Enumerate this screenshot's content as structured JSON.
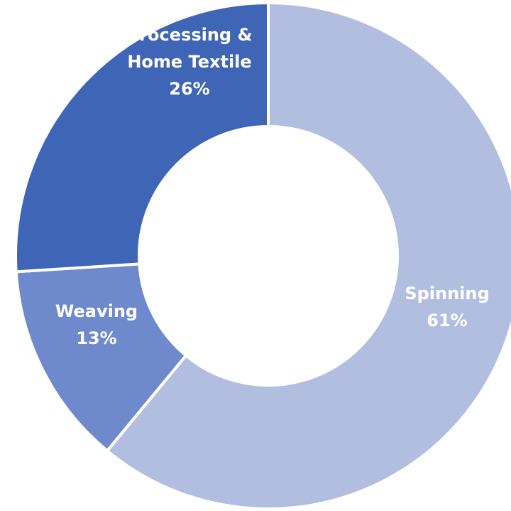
{
  "chart_data": {
    "type": "pie",
    "donut": true,
    "start_angle_deg": 0,
    "direction": "clockwise",
    "title": "",
    "legend": "none",
    "series": [
      {
        "values": [
          61,
          13,
          26
        ]
      }
    ],
    "slices": [
      {
        "name": "Spinning",
        "value": 61,
        "label": "61%",
        "color": "#B1BEE0",
        "label_lines": [
          "Spinning",
          "61%"
        ]
      },
      {
        "name": "Weaving",
        "value": 13,
        "label": "13%",
        "color": "#6F8ACC",
        "label_lines": [
          "Weaving",
          "13%"
        ]
      },
      {
        "name": "Processing & Home Textile",
        "value": 26,
        "label": "26%",
        "color": "#3F65B7",
        "label_lines": [
          "Processing &",
          "Home Textile",
          "26%"
        ]
      }
    ]
  }
}
